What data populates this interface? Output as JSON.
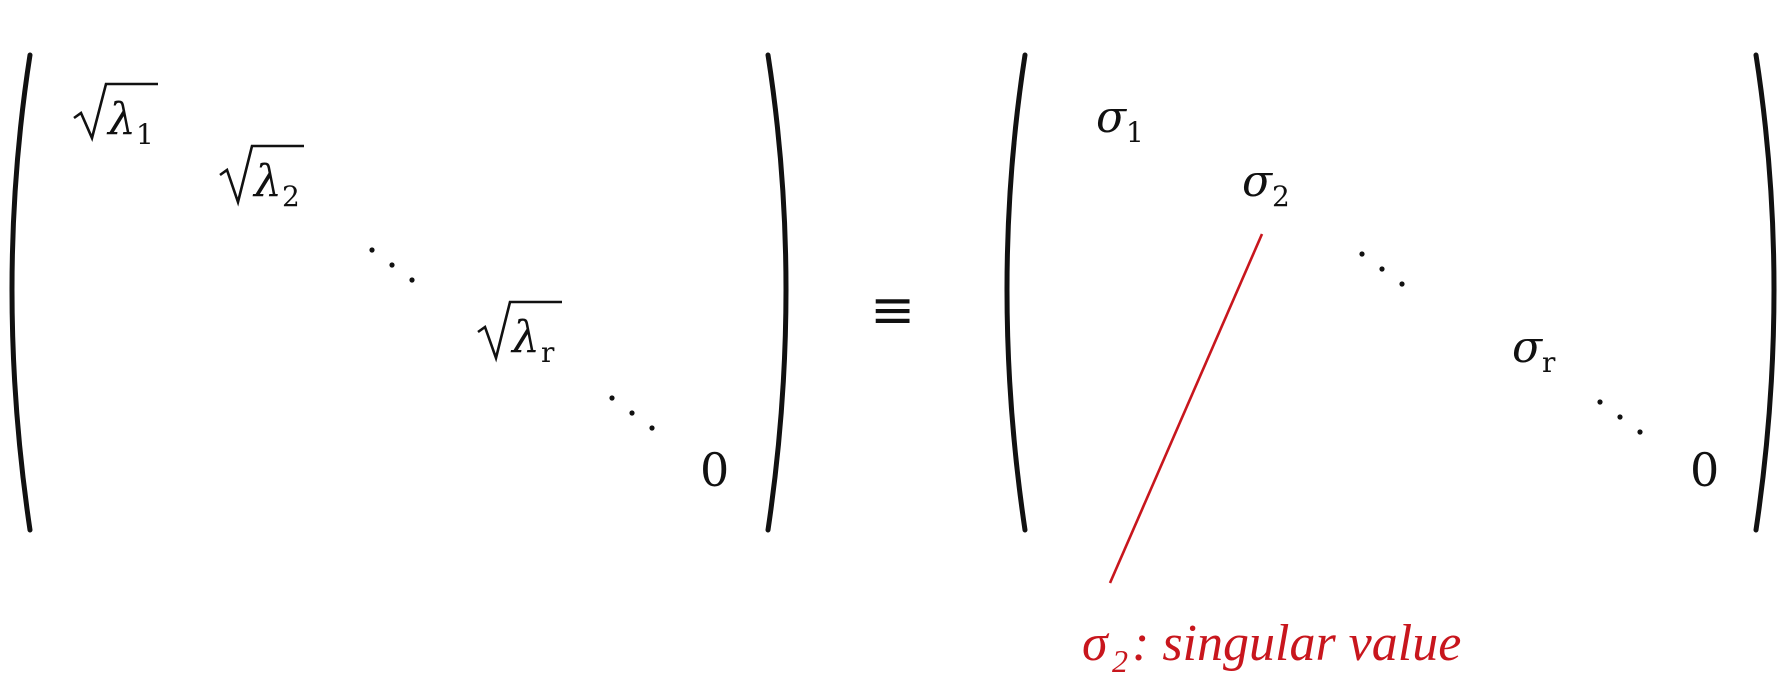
{
  "left_matrix": {
    "entries": [
      {
        "base": "λ",
        "sub": "1"
      },
      {
        "base": "λ",
        "sub": "2"
      },
      {
        "base": "λ",
        "sub": "r"
      }
    ],
    "zero": "0"
  },
  "operator": "≡",
  "right_matrix": {
    "entries": [
      {
        "base": "σ",
        "sub": "1"
      },
      {
        "base": "σ",
        "sub": "2"
      },
      {
        "base": "σ",
        "sub": "r"
      }
    ],
    "zero": "0"
  },
  "annotation": {
    "symbol": "σ",
    "sub": "2",
    "text": ": singular value",
    "color": "#c8161d"
  }
}
